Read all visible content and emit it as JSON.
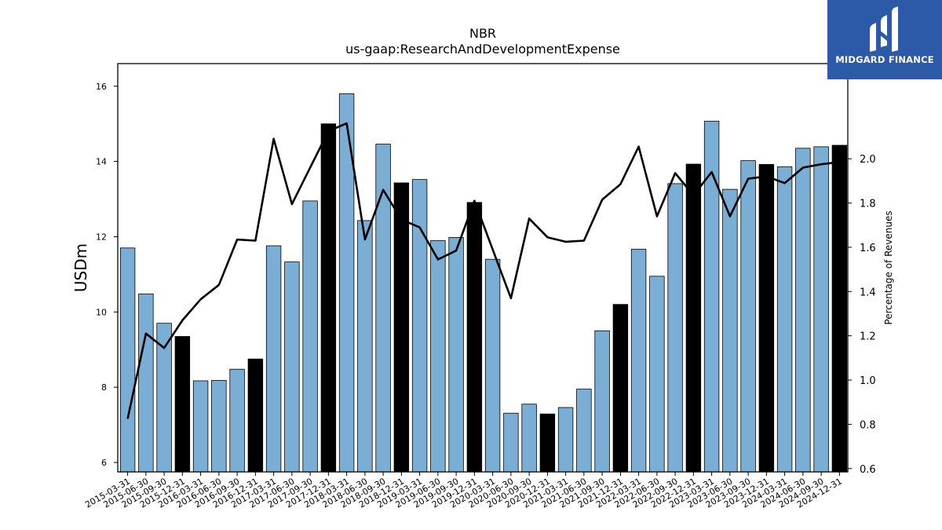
{
  "chart_data": {
    "type": "bar",
    "title": "NBR",
    "subtitle": "us-gaap:ResearchAndDevelopmentExpense",
    "ylabel": "USDm",
    "y2label": "Percentage of Revenues",
    "ylim": [
      5.75,
      16.6
    ],
    "y2lim": [
      0.585,
      2.43
    ],
    "yticks": [
      6,
      8,
      10,
      12,
      14,
      16
    ],
    "y2ticks": [
      0.6,
      0.8,
      1.0,
      1.2,
      1.4,
      1.6,
      1.8,
      2.0
    ],
    "categories": [
      "2015-03-31",
      "2015-06-30",
      "2015-09-30",
      "2015-12-31",
      "2016-03-31",
      "2016-06-30",
      "2016-09-30",
      "2016-12-31",
      "2017-03-31",
      "2017-06-30",
      "2017-09-30",
      "2017-12-31",
      "2018-03-31",
      "2018-06-30",
      "2018-09-30",
      "2018-12-31",
      "2019-03-31",
      "2019-06-30",
      "2019-09-30",
      "2019-12-31",
      "2020-03-31",
      "2020-06-30",
      "2020-09-30",
      "2020-12-31",
      "2021-03-31",
      "2021-06-30",
      "2021-09-30",
      "2021-12-31",
      "2022-03-31",
      "2022-06-30",
      "2022-09-30",
      "2022-12-31",
      "2023-03-31",
      "2023-06-30",
      "2023-09-30",
      "2023-12-31",
      "2024-03-31",
      "2024-06-30",
      "2024-09-30",
      "2024-12-31"
    ],
    "series": [
      {
        "kind": "bar",
        "values": [
          11.7,
          10.48,
          9.7,
          9.35,
          8.17,
          8.18,
          8.48,
          8.75,
          11.76,
          11.33,
          12.95,
          15.0,
          15.8,
          12.43,
          14.46,
          13.43,
          13.52,
          11.9,
          11.98,
          12.91,
          11.4,
          7.31,
          7.55,
          7.29,
          7.46,
          7.95,
          9.5,
          10.2,
          11.67,
          10.95,
          13.41,
          13.93,
          15.07,
          13.26,
          14.02,
          13.92,
          13.86,
          14.35,
          14.39,
          14.43
        ],
        "colors": [
          "blue",
          "blue",
          "blue",
          "black",
          "blue",
          "blue",
          "blue",
          "black",
          "blue",
          "blue",
          "blue",
          "black",
          "blue",
          "blue",
          "blue",
          "black",
          "blue",
          "blue",
          "blue",
          "black",
          "blue",
          "blue",
          "blue",
          "black",
          "blue",
          "blue",
          "blue",
          "black",
          "blue",
          "blue",
          "blue",
          "black",
          "blue",
          "blue",
          "blue",
          "black",
          "blue",
          "blue",
          "blue",
          "black"
        ]
      },
      {
        "kind": "line",
        "axis": "right",
        "values": [
          0.825,
          1.21,
          1.145,
          1.27,
          1.365,
          1.43,
          1.635,
          1.63,
          2.09,
          1.795,
          1.96,
          2.125,
          2.16,
          1.635,
          1.86,
          1.725,
          1.69,
          1.545,
          1.585,
          1.81,
          1.59,
          1.37,
          1.73,
          1.645,
          1.625,
          1.63,
          1.815,
          1.885,
          2.055,
          1.74,
          1.935,
          1.835,
          1.94,
          1.74,
          1.91,
          1.92,
          1.89,
          1.96,
          1.975,
          1.985
        ]
      }
    ],
    "colors": {
      "blue": "#7aaed4",
      "black": "#000000",
      "line": "#000000"
    },
    "grid": false,
    "legend": "none"
  },
  "logo": {
    "text": "MIDGARD FINANCE",
    "background": "#2c5aa8"
  }
}
